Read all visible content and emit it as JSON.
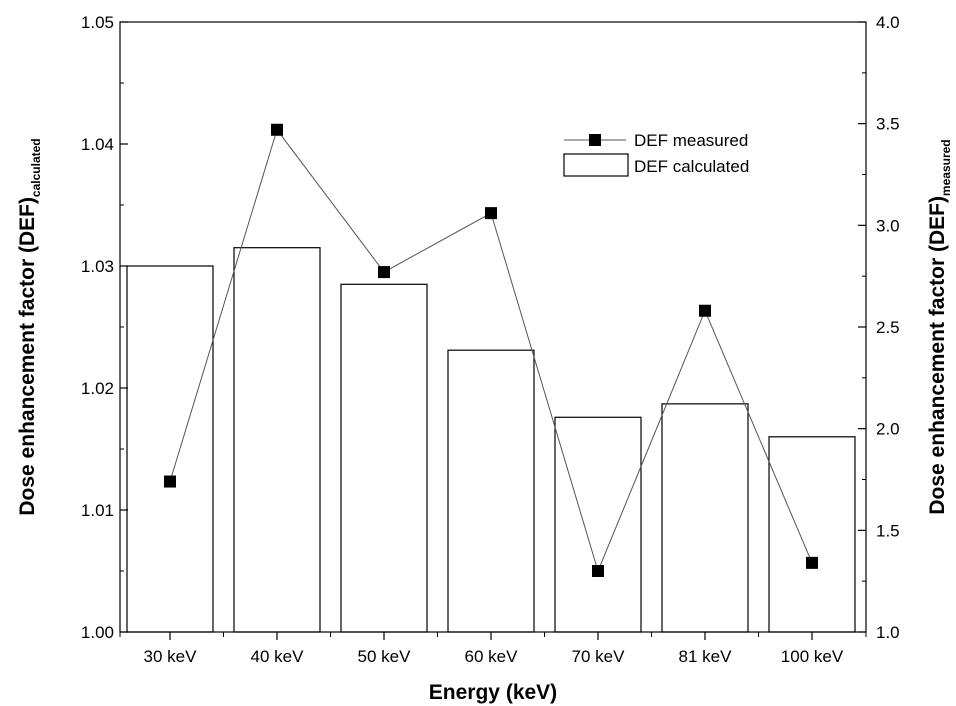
{
  "chart_data": {
    "type": "bar",
    "categories": [
      "30 keV",
      "40 keV",
      "50 keV",
      "60 keV",
      "70 keV",
      "81 keV",
      "100 keV"
    ],
    "series": [
      {
        "name": "DEF calculated",
        "type": "bar",
        "axis": "left",
        "values": [
          1.03,
          1.0315,
          1.0285,
          1.0231,
          1.0176,
          1.0187,
          1.016
        ]
      },
      {
        "name": "DEF measured",
        "type": "line",
        "axis": "right",
        "marker": "square",
        "values": [
          1.74,
          3.47,
          2.77,
          3.06,
          1.3,
          2.58,
          1.34
        ]
      }
    ],
    "xlabel": "Energy (keV)",
    "ylabel_left": {
      "main": "Dose enhancement factor (DEF)",
      "sub": "calculated"
    },
    "ylabel_right": {
      "main": "Dose enhancement factor (DEF)",
      "sub": "measured"
    },
    "ylim_left": [
      1.0,
      1.05
    ],
    "yticks_left": [
      "1.00",
      "1.01",
      "1.02",
      "1.03",
      "1.04",
      "1.05"
    ],
    "ylim_right": [
      1.0,
      4.0
    ],
    "yticks_right": [
      "1.0",
      "1.5",
      "2.0",
      "2.5",
      "3.0",
      "3.5",
      "4.0"
    ],
    "grid": false,
    "legend_position": "top-right",
    "colors": {
      "bar_fill": "#ffffff",
      "bar_stroke": "#000000",
      "line": "#555555",
      "marker": "#000000"
    }
  }
}
